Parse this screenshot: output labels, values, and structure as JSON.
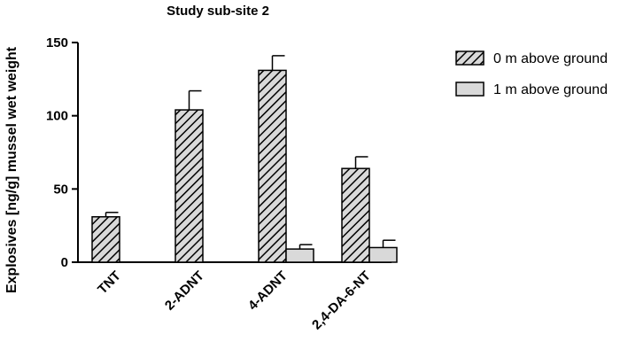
{
  "chart_data": {
    "type": "bar",
    "title": "Study sub-site 2",
    "xlabel": "",
    "ylabel": "Explosives [ng/g] mussel wet weight",
    "ylim": [
      0,
      150
    ],
    "yticks": [
      "0",
      "50",
      "100",
      "150"
    ],
    "categories": [
      "TNT",
      "2-ADNT",
      "4-ADNT",
      "2,4-DA-6-NT"
    ],
    "series": [
      {
        "name": "0 m above ground",
        "pattern": "hatched",
        "color": "#d9d9d9",
        "values": [
          31,
          104,
          131,
          64
        ],
        "errors": [
          3,
          13,
          10,
          8
        ]
      },
      {
        "name": "1 m above ground",
        "pattern": "solid",
        "color": "#d9d9d9",
        "values": [
          0,
          0,
          9,
          10
        ],
        "errors": [
          0,
          0,
          3,
          5
        ]
      }
    ],
    "legend_position": "right",
    "grid": false
  }
}
